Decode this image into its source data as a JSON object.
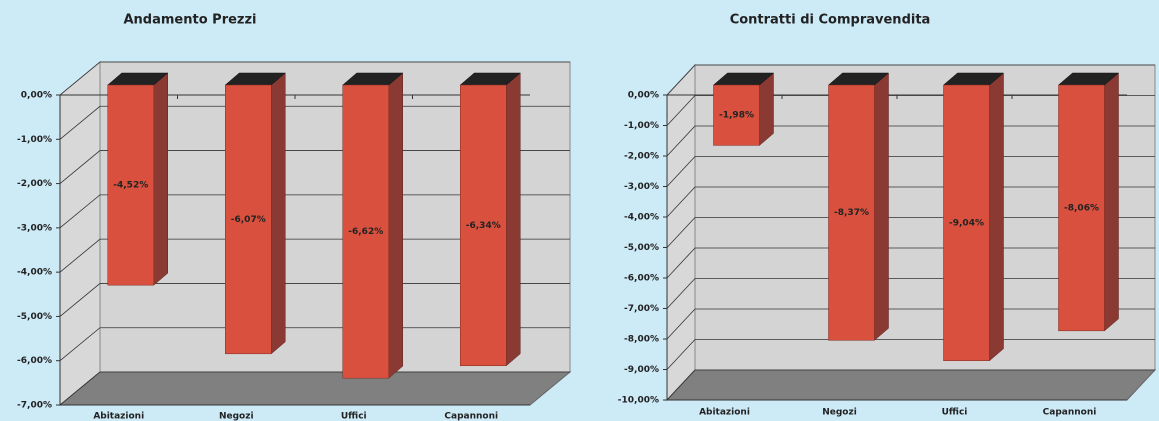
{
  "chart_data": [
    {
      "type": "bar",
      "title": "Andamento Prezzi",
      "categories": [
        "Abitazioni",
        "Negozi",
        "Uffici",
        "Capannoni"
      ],
      "values": [
        -4.52,
        -6.07,
        -6.62,
        -6.34
      ],
      "value_labels": [
        "-4,52%",
        "-6,07%",
        "-6,62%",
        "-6,34%"
      ],
      "color": "#d9513e",
      "ylim": [
        -7,
        0
      ],
      "yticks": [
        {
          "value": 0,
          "label": "0,00%"
        },
        {
          "value": -1,
          "label": "-1,00%"
        },
        {
          "value": -2,
          "label": "-2,00%"
        },
        {
          "value": -3,
          "label": "-3,00%"
        },
        {
          "value": -4,
          "label": "-4,00%"
        },
        {
          "value": -5,
          "label": "-5,00%"
        },
        {
          "value": -6,
          "label": "-6,00%"
        },
        {
          "value": -7,
          "label": "-7,00%"
        }
      ],
      "grid": true
    },
    {
      "type": "bar",
      "title": "Contratti di Compravendita",
      "categories": [
        "Abitazioni",
        "Negozi",
        "Uffici",
        "Capannoni"
      ],
      "values": [
        -1.98,
        -8.37,
        -9.04,
        -8.06
      ],
      "value_labels": [
        "-1,98%",
        "-8,37%",
        "-9,04%",
        "-8,06%"
      ],
      "color": "#d9513e",
      "ylim": [
        -10,
        0
      ],
      "yticks": [
        {
          "value": 0,
          "label": "0,00%"
        },
        {
          "value": -1,
          "label": "-1,00%"
        },
        {
          "value": -2,
          "label": "-2,00%"
        },
        {
          "value": -3,
          "label": "-3,00%"
        },
        {
          "value": -4,
          "label": "-4,00%"
        },
        {
          "value": -5,
          "label": "-5,00%"
        },
        {
          "value": -6,
          "label": "-6,00%"
        },
        {
          "value": -7,
          "label": "-7,00%"
        },
        {
          "value": -8,
          "label": "-8,00%"
        },
        {
          "value": -9,
          "label": "-9,00%"
        },
        {
          "value": -10,
          "label": "-10,00%"
        }
      ],
      "grid": true
    }
  ]
}
